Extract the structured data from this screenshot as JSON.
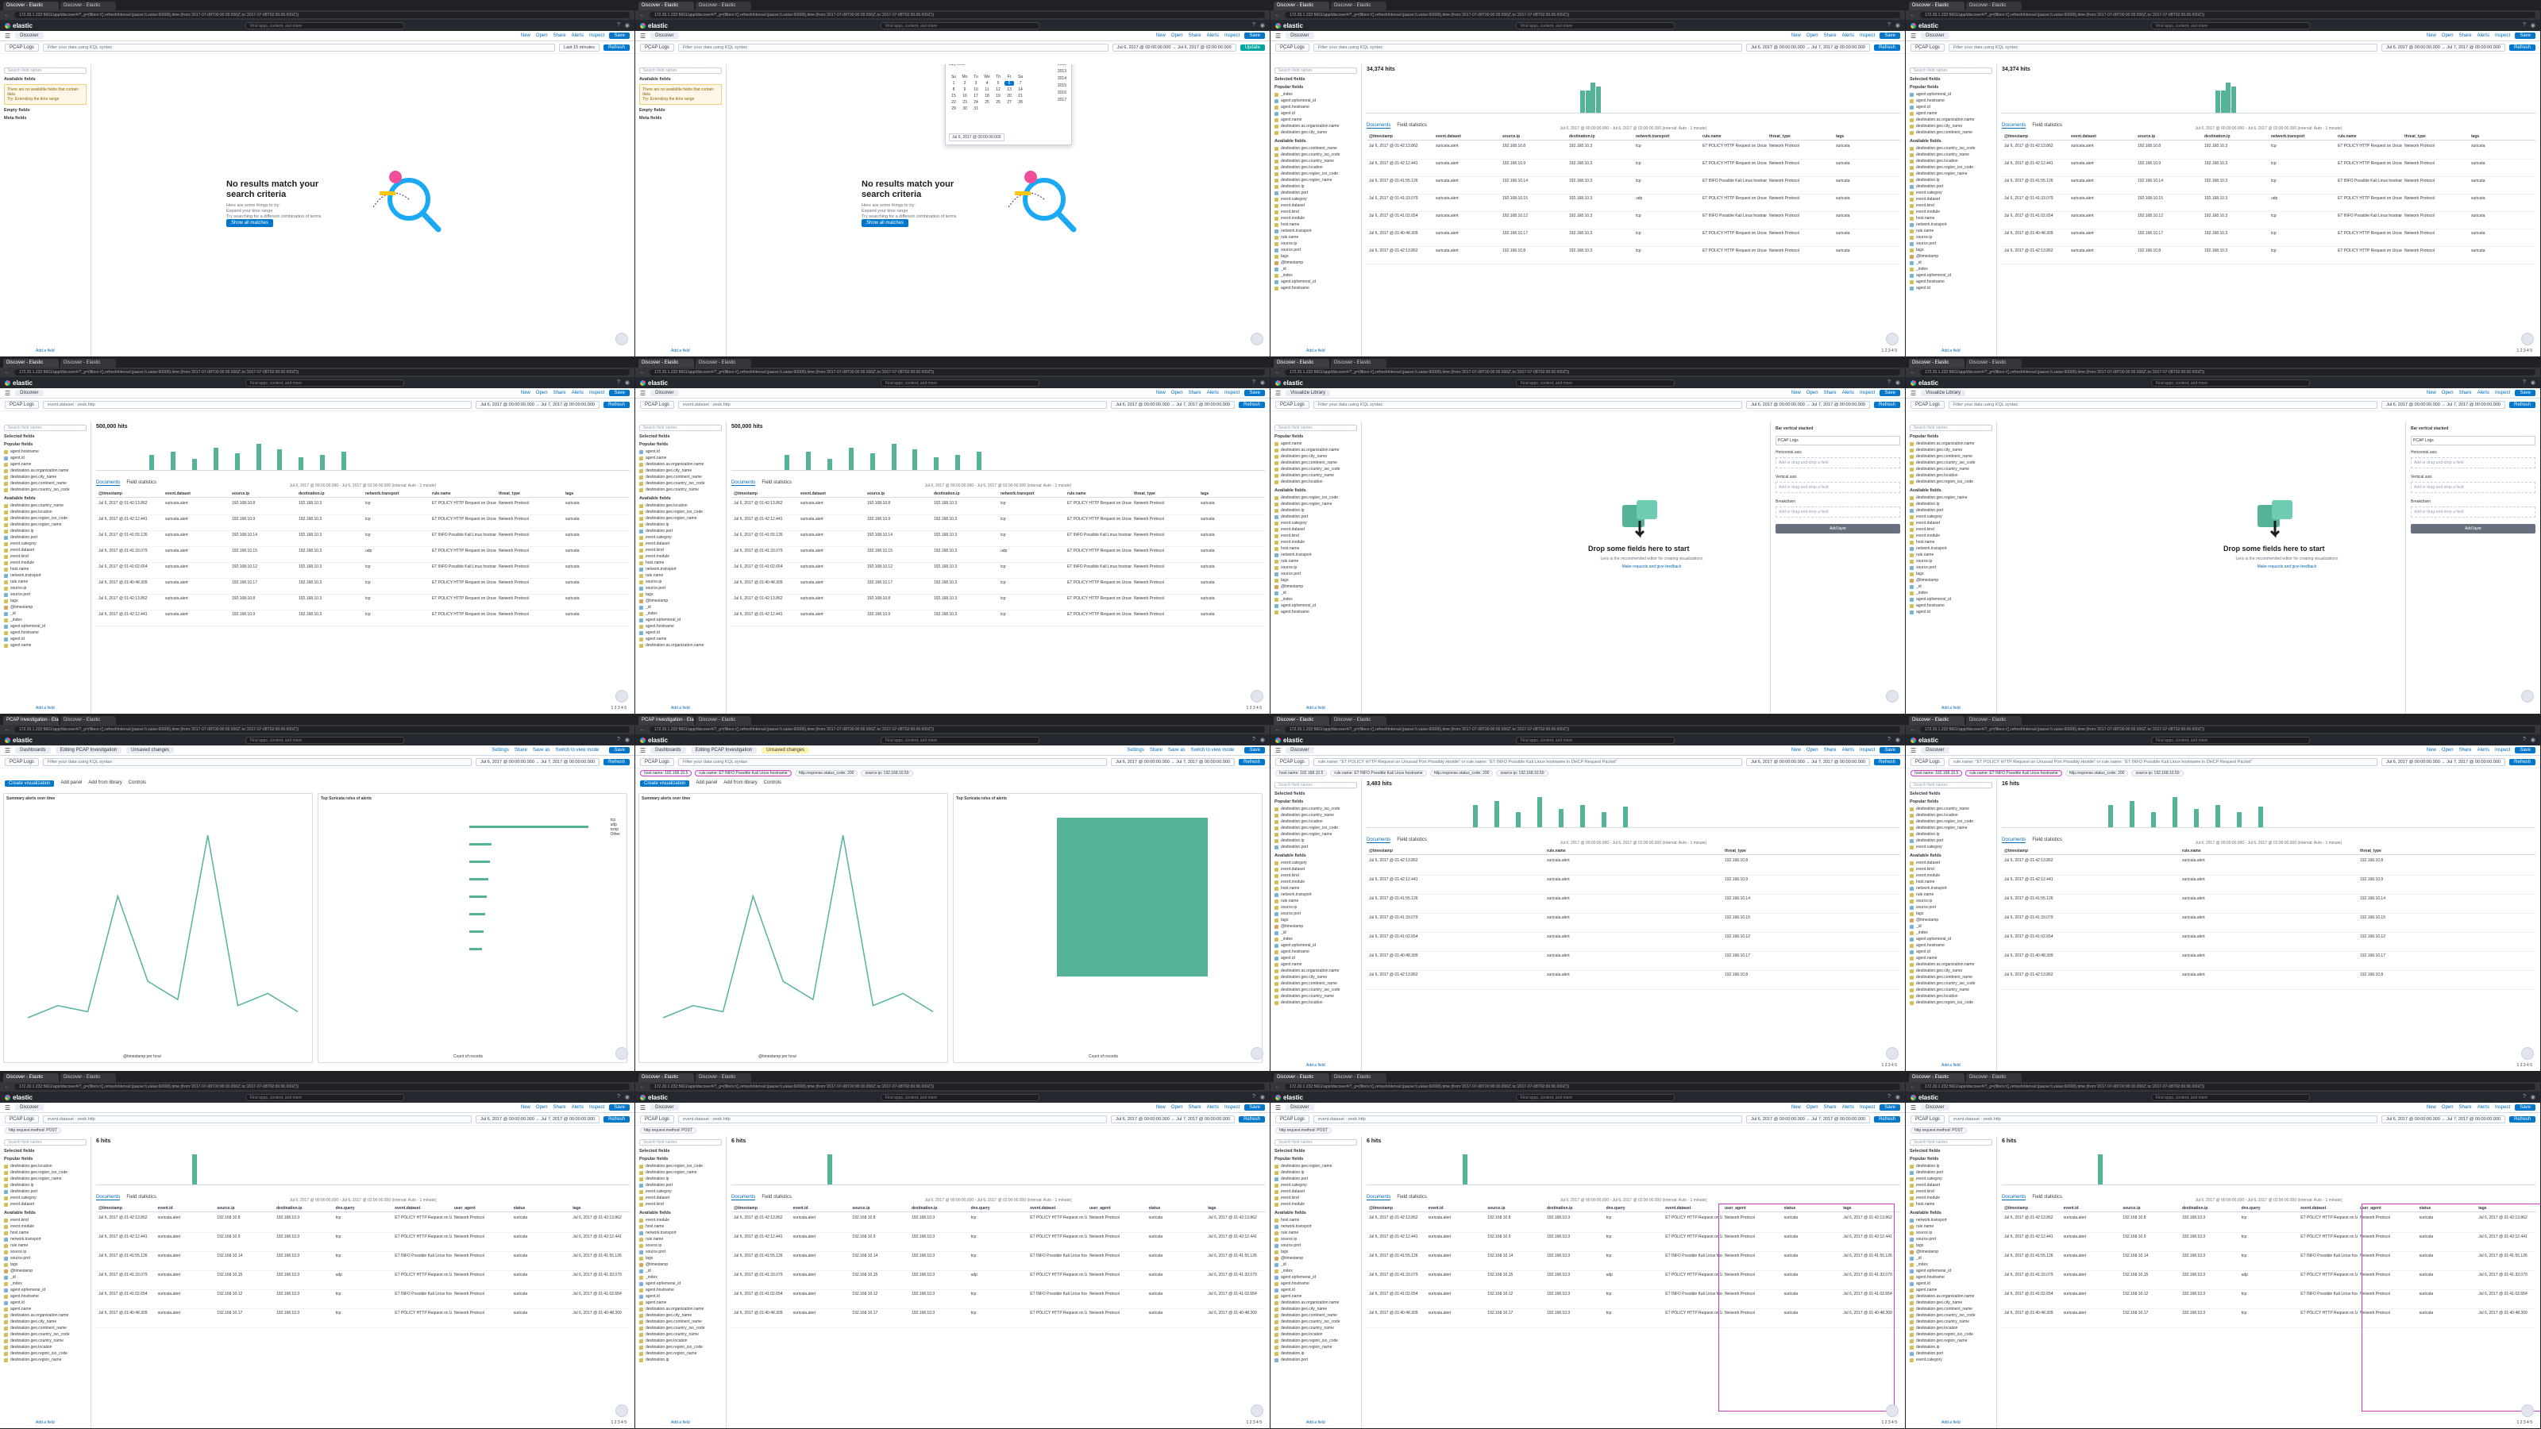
{
  "browser": {
    "tab_discover": "Discover - Elastic",
    "tab_dashboard": "PCAP Investigation - Elastic",
    "url": "172.20.1.232:5601/app/discover#/?_g=(filters:!(),refreshInterval:(pause:!t,value:60000),time:(from:'2017-07-08T00:00:00.000Z',to:'2017-07-08T02:00:00.000Z'))"
  },
  "kibana": {
    "logo": "elastic",
    "global_search": "Find apps, content, and more",
    "breadcrumb_discover": "Discover",
    "breadcrumb_lens": "Visualize Library",
    "breadcrumb_dashboard": "Dashboards",
    "breadcrumb_dashboard_name": "Editing PCAP Investigation",
    "unsaved": "Unsaved changes",
    "top_links": [
      "New",
      "Open",
      "Share",
      "Alerts",
      "Inspect"
    ],
    "save": "Save"
  },
  "query": {
    "data_view": "PCAP Logs",
    "placeholder": "Filter your data using KQL syntax",
    "event_dataset": "event.dataset : zeek.http",
    "ids_query": "rule.name: \"ET POLICY HTTP Request on Unusual Port Possibly Hostile\" or rule.name: \"ET INFO Possible Kali Linux hostname in DHCP Request Packet\"",
    "last_15": "Last 15 minutes",
    "custom_range": "Jul 6, 2017 @ 00:00:00.000  →  Jul 6, 2017 @ 02:00:00.000",
    "absolute_range": "Jul 6, 2017 @ 00:00:00.000  →  Jul 7, 2017 @ 00:00:00.000",
    "refresh": "Refresh",
    "update": "Update"
  },
  "filters": {
    "host_pill": "host.name: 192.168.10.5",
    "rule_pill": "rule.name: ET INFO Possible Kali Linux hostname",
    "status_pill": "http.response.status_code: 200",
    "source_pill": "source.ip: 192.168.10.50",
    "method_pill": "http.request.method: POST"
  },
  "sidebar": {
    "search_placeholder": "Search field names",
    "available": "Available fields",
    "selected": "Selected fields",
    "popular": "Popular fields",
    "empty": "Empty fields",
    "meta": "Meta fields",
    "no_fields_warning": "There are no available fields that contain data.",
    "warning_hint": "Try: Extending the time range",
    "add_field": "Add a field",
    "fields": [
      "@timestamp",
      "_id",
      "_index",
      "agent.ephemeral_id",
      "agent.hostname",
      "agent.id",
      "agent.name",
      "destination.as.organization.name",
      "destination.geo.city_name",
      "destination.geo.continent_name",
      "destination.geo.country_iso_code",
      "destination.geo.country_name",
      "destination.geo.location",
      "destination.geo.region_iso_code",
      "destination.geo.region_name",
      "destination.ip",
      "destination.port",
      "event.category",
      "event.dataset",
      "event.kind",
      "event.module",
      "host.name",
      "network.transport",
      "rule.name",
      "source.ip",
      "source.port",
      "tags"
    ]
  },
  "empty_state": {
    "title": "No results match your search criteria",
    "hint1": "Here are some things to try:",
    "hint2": "Expand your time range",
    "hint3": "Try searching for a different combination of terms",
    "button": "Show all matches"
  },
  "datepicker": {
    "tab_absolute": "Absolute",
    "tab_relative": "Relative",
    "tab_now": "Now",
    "month": "July 2017",
    "days": [
      "Su",
      "Mo",
      "Tu",
      "We",
      "Th",
      "Fr",
      "Sa"
    ],
    "start_date": "Jul 6, 2017 @ 00:00:00.000",
    "years": [
      "2012",
      "2013",
      "2014",
      "2015",
      "2016",
      "2017"
    ]
  },
  "discover": {
    "hits_1": "34,374 hits",
    "hits_2": "500,000 hits",
    "hits_3": "3,483 hits",
    "hits_4": "16 hits",
    "hits_5": "6 hits",
    "breakdown": "Break down by",
    "select_field": "Select field",
    "interval": "Jul 6, 2017 @ 00:00:00.000 - Jul 6, 2017 @ 02:00:00.000 (interval: Auto - 1 minute)",
    "tab_documents": "Documents",
    "tab_field_stats": "Field statistics",
    "columns": "Columns",
    "sort": "1 field sorted",
    "columns_a": [
      "@timestamp",
      "event.dataset",
      "source.ip",
      "destination.ip",
      "network.transport",
      "rule.name",
      "threat_type",
      "tags"
    ],
    "columns_b": [
      "@timestamp",
      "rule.name",
      "threat_type"
    ],
    "columns_c": [
      "@timestamp",
      "event.id",
      "source.ip",
      "destination.ip",
      "dns.query",
      "event.dataset",
      "user_agent",
      "status",
      "tags"
    ],
    "rows_per_page": "Rows per page: 100",
    "pages": "1 2 3 4 5",
    "rows": [
      {
        "time": "Jul 6, 2017 @ 01:42:13.862",
        "dataset": "suricata.alert",
        "src": "192.168.10.8",
        "dst": "192.168.10.3",
        "proto": "tcp",
        "rule": "ET POLICY HTTP Request on Unusual Port",
        "type": "Network Protocol",
        "tag": "suricata"
      },
      {
        "time": "Jul 6, 2017 @ 01:42:12.441",
        "dataset": "suricata.alert",
        "src": "192.168.10.9",
        "dst": "192.168.10.3",
        "proto": "tcp",
        "rule": "ET POLICY HTTP Request on Unusual Port",
        "type": "Network Protocol",
        "tag": "suricata"
      },
      {
        "time": "Jul 6, 2017 @ 01:41:55.126",
        "dataset": "suricata.alert",
        "src": "192.168.10.14",
        "dst": "192.168.10.3",
        "proto": "tcp",
        "rule": "ET INFO Possible Kali Linux hostname",
        "type": "Network Protocol",
        "tag": "suricata"
      },
      {
        "time": "Jul 6, 2017 @ 01:41:33.079",
        "dataset": "suricata.alert",
        "src": "192.168.10.15",
        "dst": "192.168.10.3",
        "proto": "udp",
        "rule": "ET POLICY HTTP Request on Unusual Port",
        "type": "Network Protocol",
        "tag": "suricata"
      },
      {
        "time": "Jul 6, 2017 @ 01:41:02.654",
        "dataset": "suricata.alert",
        "src": "192.168.10.12",
        "dst": "192.168.10.3",
        "proto": "tcp",
        "rule": "ET INFO Possible Kali Linux hostname",
        "type": "Network Protocol",
        "tag": "suricata"
      },
      {
        "time": "Jul 6, 2017 @ 01:40:48.309",
        "dataset": "suricata.alert",
        "src": "192.168.10.17",
        "dst": "192.168.10.3",
        "proto": "tcp",
        "rule": "ET POLICY HTTP Request on Unusual Port",
        "type": "Network Protocol",
        "tag": "suricata"
      }
    ],
    "zeek_rows": [
      "zeek.http",
      "zeek.conn",
      "zeek.dns"
    ]
  },
  "lens": {
    "drop_title": "Drop some fields here to start",
    "drop_sub": "Lens is the recommended editor for creating visualizations",
    "drop_link": "Make requests and give feedback",
    "bar_vertical": "Bar vertical stacked",
    "layer_label": "PCAP Logs",
    "horizontal_axis": "Horizontal axis",
    "vertical_axis": "Vertical axis",
    "breakdown": "Breakdown",
    "add_dimension": "Add or drag-and-drop a field",
    "add_layer": "Add layer"
  },
  "dashboard": {
    "create_viz": "Create visualization",
    "add_panel": "Add panel",
    "add_from_library": "Add from library",
    "controls": "Controls",
    "panel1_title": "Summary alerts over time",
    "panel2_title": "Top Suricata rules of alerts",
    "axis_time": "@timestamp per hour",
    "axis_count": "Count of records",
    "axis_rule": "Top 10 values of rule.name",
    "top_links": [
      "Settings",
      "Share",
      "Save as",
      "Switch to view mode"
    ],
    "save": "Save",
    "legend": [
      "tcp",
      "udp",
      "icmp",
      "Other"
    ]
  },
  "chart_data": [
    {
      "type": "bar",
      "title": "Summary alerts over time",
      "categories": [
        "00:10",
        "00:20",
        "00:30",
        "00:40",
        "00:50",
        "01:00",
        "01:10",
        "01:20",
        "01:30",
        "01:40"
      ],
      "values": [
        0,
        2,
        1,
        20,
        6,
        3,
        30,
        2,
        4,
        1
      ],
      "ylabel": "Count of records"
    }
  ],
  "colors": {
    "accent": "#0077cc",
    "histogram": "#54b399",
    "highlight": "#fff04a",
    "annotation": "#c93cc8",
    "header": "#25282f"
  }
}
